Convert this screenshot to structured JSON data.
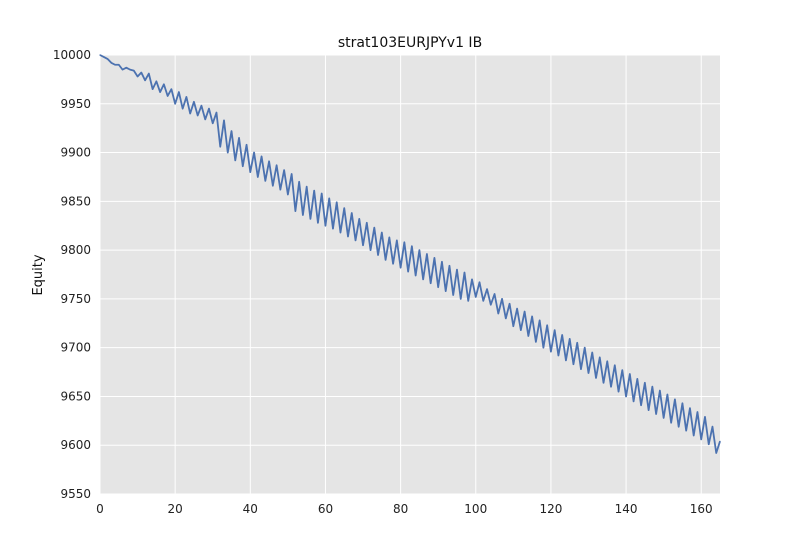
{
  "chart_data": {
    "type": "line",
    "title": "strat103EURJPYv1 IB",
    "xlabel": "",
    "ylabel": "Equity",
    "xlim": [
      0,
      165
    ],
    "ylim": [
      9550,
      10000
    ],
    "x_ticks": [
      0,
      20,
      40,
      60,
      80,
      100,
      120,
      140,
      160
    ],
    "y_ticks": [
      9550,
      9600,
      9650,
      9700,
      9750,
      9800,
      9850,
      9900,
      9950,
      10000
    ],
    "grid": true,
    "legend": "none",
    "series": [
      {
        "color": "#4c72b0",
        "x": [
          0,
          1,
          2,
          3,
          4,
          5,
          6,
          7,
          8,
          9,
          10,
          11,
          12,
          13,
          14,
          15,
          16,
          17,
          18,
          19,
          20,
          21,
          22,
          23,
          24,
          25,
          26,
          27,
          28,
          29,
          30,
          31,
          32,
          33,
          34,
          35,
          36,
          37,
          38,
          39,
          40,
          41,
          42,
          43,
          44,
          45,
          46,
          47,
          48,
          49,
          50,
          51,
          52,
          53,
          54,
          55,
          56,
          57,
          58,
          59,
          60,
          61,
          62,
          63,
          64,
          65,
          66,
          67,
          68,
          69,
          70,
          71,
          72,
          73,
          74,
          75,
          76,
          77,
          78,
          79,
          80,
          81,
          82,
          83,
          84,
          85,
          86,
          87,
          88,
          89,
          90,
          91,
          92,
          93,
          94,
          95,
          96,
          97,
          98,
          99,
          100,
          101,
          102,
          103,
          104,
          105,
          106,
          107,
          108,
          109,
          110,
          111,
          112,
          113,
          114,
          115,
          116,
          117,
          118,
          119,
          120,
          121,
          122,
          123,
          124,
          125,
          126,
          127,
          128,
          129,
          130,
          131,
          132,
          133,
          134,
          135,
          136,
          137,
          138,
          139,
          140,
          141,
          142,
          143,
          144,
          145,
          146,
          147,
          148,
          149,
          150,
          151,
          152,
          153,
          154,
          155,
          156,
          157,
          158,
          159,
          160,
          161,
          162,
          163,
          164,
          165
        ],
        "values": [
          10000,
          9998,
          9996,
          9992,
          9990,
          9990,
          9985,
          9987,
          9985,
          9984,
          9978,
          9982,
          9974,
          9981,
          9965,
          9973,
          9962,
          9970,
          9958,
          9965,
          9950,
          9962,
          9945,
          9957,
          9940,
          9952,
          9938,
          9948,
          9934,
          9945,
          9930,
          9941,
          9906,
          9933,
          9900,
          9922,
          9892,
          9915,
          9886,
          9908,
          9880,
          9900,
          9875,
          9896,
          9871,
          9891,
          9866,
          9887,
          9862,
          9882,
          9857,
          9878,
          9840,
          9870,
          9836,
          9865,
          9832,
          9861,
          9828,
          9858,
          9825,
          9853,
          9822,
          9849,
          9818,
          9843,
          9814,
          9838,
          9810,
          9832,
          9805,
          9828,
          9800,
          9823,
          9795,
          9818,
          9790,
          9813,
          9786,
          9810,
          9782,
          9808,
          9778,
          9804,
          9774,
          9800,
          9770,
          9796,
          9766,
          9792,
          9762,
          9788,
          9758,
          9784,
          9754,
          9780,
          9750,
          9777,
          9748,
          9770,
          9752,
          9767,
          9748,
          9760,
          9744,
          9755,
          9735,
          9750,
          9730,
          9745,
          9722,
          9740,
          9718,
          9737,
          9712,
          9732,
          9706,
          9728,
          9700,
          9723,
          9696,
          9718,
          9692,
          9713,
          9687,
          9709,
          9683,
          9705,
          9678,
          9700,
          9674,
          9695,
          9669,
          9690,
          9664,
          9686,
          9660,
          9682,
          9655,
          9677,
          9650,
          9673,
          9645,
          9668,
          9641,
          9664,
          9636,
          9660,
          9632,
          9656,
          9628,
          9652,
          9623,
          9647,
          9619,
          9643,
          9615,
          9638,
          9610,
          9634,
          9606,
          9629,
          9601,
          9619,
          9592,
          9604
        ]
      }
    ]
  }
}
